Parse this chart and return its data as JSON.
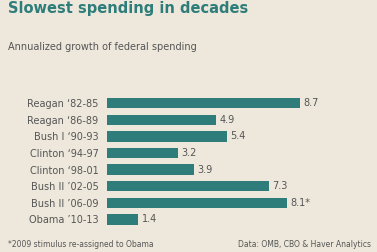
{
  "title": "Slowest spending in decades",
  "subtitle": "Annualized growth of federal spending",
  "categories": [
    "Reagan ‘82-85",
    "Reagan ‘86-89",
    "Bush I ‘90-93",
    "Clinton ‘94-97",
    "Clinton ‘98-01",
    "Bush II ’02-05",
    "Bush II ’06-09",
    "Obama ’10-13"
  ],
  "values": [
    8.7,
    4.9,
    5.4,
    3.2,
    3.9,
    7.3,
    8.1,
    1.4
  ],
  "labels": [
    "8.7",
    "4.9",
    "5.4",
    "3.2",
    "3.9",
    "7.3",
    "8.1*",
    "1.4"
  ],
  "bar_color": "#2e7d7a",
  "background_color": "#ede8db",
  "title_color": "#2e7d7a",
  "label_color": "#555555",
  "footnote_color": "#555555",
  "footnote": "*2009 stimulus re-assigned to Obama",
  "source": "Data: OMB, CBO & Haver Analytics",
  "xlim": [
    0,
    10.2
  ],
  "bar_height": 0.62
}
